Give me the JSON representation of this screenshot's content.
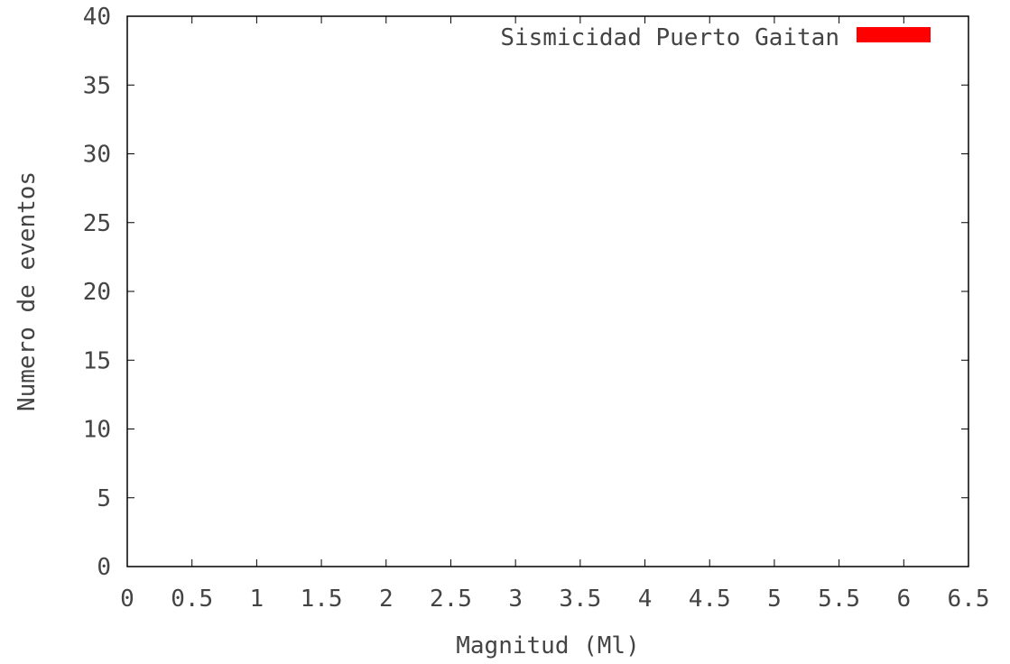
{
  "chart_data": {
    "type": "bar",
    "title": "",
    "xlabel": "Magnitud (Ml)",
    "ylabel": "Numero de eventos",
    "xlim": [
      0,
      6.5
    ],
    "ylim": [
      0,
      40
    ],
    "xticks": [
      "0",
      "0.5",
      "1",
      "1.5",
      "2",
      "2.5",
      "3",
      "3.5",
      "4",
      "4.5",
      "5",
      "5.5",
      "6",
      "6.5"
    ],
    "yticks": [
      "0",
      "5",
      "10",
      "15",
      "20",
      "25",
      "30",
      "35",
      "40"
    ],
    "grid": false,
    "legend_position": "top-right",
    "series": [
      {
        "name": "Sismicidad Puerto Gaitan",
        "color": "#ff0000",
        "bars": [
          {
            "x_start": 1.5,
            "x_end": 2.0,
            "value": 0
          },
          {
            "x_start": 2.0,
            "x_end": 2.5,
            "value": 0
          },
          {
            "x_start": 2.5,
            "x_end": 3.0,
            "value": 0
          },
          {
            "x_start": 3.0,
            "x_end": 3.5,
            "value": 0
          },
          {
            "x_start": 3.5,
            "x_end": 4.0,
            "value": 0
          }
        ]
      }
    ]
  }
}
